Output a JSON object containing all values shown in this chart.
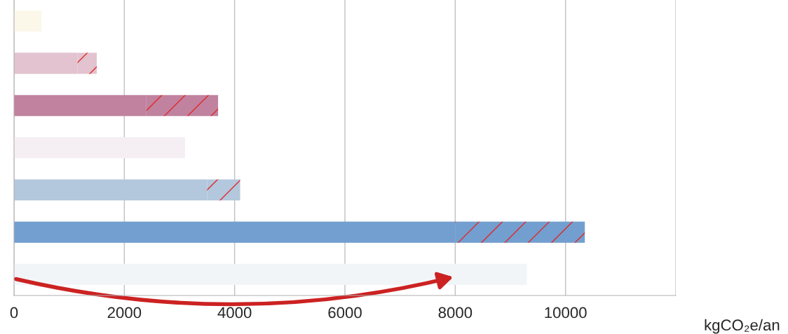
{
  "chart_data": {
    "type": "bar",
    "orientation": "horizontal",
    "stacked": true,
    "categories": [
      null,
      null,
      null,
      null,
      null,
      null,
      null
    ],
    "series": [
      {
        "colors": [
          "#fbf8ea",
          "#e2c3cf",
          "#c0829f",
          "#f5eff3",
          "#b3c7dd",
          "#729fcf",
          "#f2f5f8"
        ],
        "values": [
          500,
          1150,
          2400,
          3100,
          3500,
          8000,
          9300
        ]
      },
      {
        "color": "#e02828",
        "colors": [
          "#e2c3cf",
          "#e2c3cf",
          "#c0829f",
          "#f5eff3",
          "#b3c7dd",
          "#729fcf",
          "#f2f5f8"
        ],
        "values": [
          null,
          350,
          1300,
          null,
          600,
          2350,
          null
        ]
      }
    ],
    "xlim": [
      0,
      12000
    ],
    "xticks": [
      0,
      2000,
      4000,
      6000,
      8000,
      10000,
      {
        "value": 12000,
        "label": null
      }
    ],
    "xlabel": "kgCO₂e/an",
    "grid": "x"
  }
}
